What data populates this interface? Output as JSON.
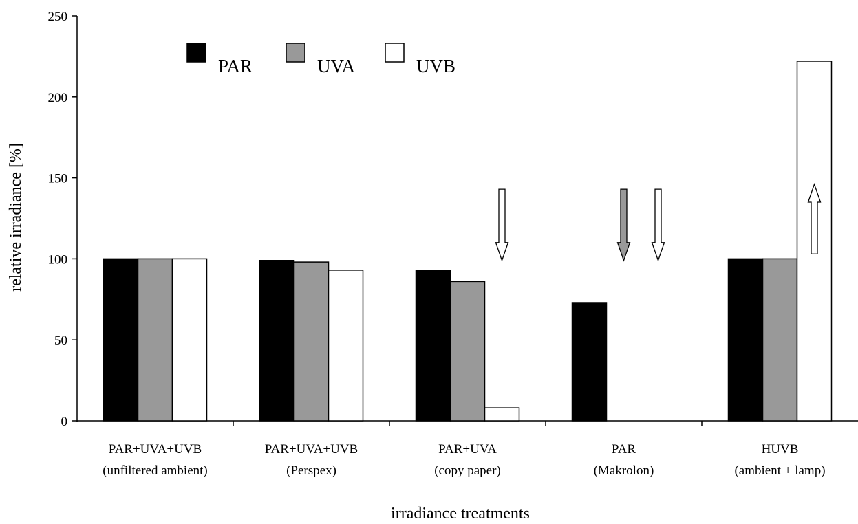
{
  "chart_data": {
    "type": "bar",
    "title": "",
    "xlabel": "irradiance treatments",
    "ylabel": "relative irradiance [%]",
    "ylim": [
      0,
      250
    ],
    "yticks": [
      0,
      50,
      100,
      150,
      200,
      250
    ],
    "grid": false,
    "legend_position": "top-left",
    "categories": [
      {
        "line1": "PAR+UVA+UVB",
        "line2": "(unfiltered ambient)"
      },
      {
        "line1": "PAR+UVA+UVB",
        "line2": "(Perspex)"
      },
      {
        "line1": "PAR+UVA",
        "line2": "(copy paper)"
      },
      {
        "line1": "PAR",
        "line2": "(Makrolon)"
      },
      {
        "line1": "HUVB",
        "line2": "(ambient + lamp)"
      }
    ],
    "series": [
      {
        "name": "PAR",
        "color": "#000000",
        "values": [
          100,
          99,
          93,
          73,
          100
        ]
      },
      {
        "name": "UVA",
        "color": "#999999",
        "values": [
          100,
          98,
          86,
          null,
          100
        ]
      },
      {
        "name": "UVB",
        "color": "#ffffff",
        "values": [
          100,
          93,
          8,
          null,
          222
        ]
      }
    ],
    "annotations": [
      {
        "type": "arrow-down",
        "category": 2,
        "series": "UVB",
        "color": "#ffffff"
      },
      {
        "type": "arrow-down",
        "category": 3,
        "series": "UVA",
        "color": "#999999"
      },
      {
        "type": "arrow-down",
        "category": 3,
        "series": "UVB",
        "color": "#ffffff"
      },
      {
        "type": "arrow-up",
        "category": 4,
        "series": "UVB",
        "color": "#ffffff"
      }
    ]
  }
}
